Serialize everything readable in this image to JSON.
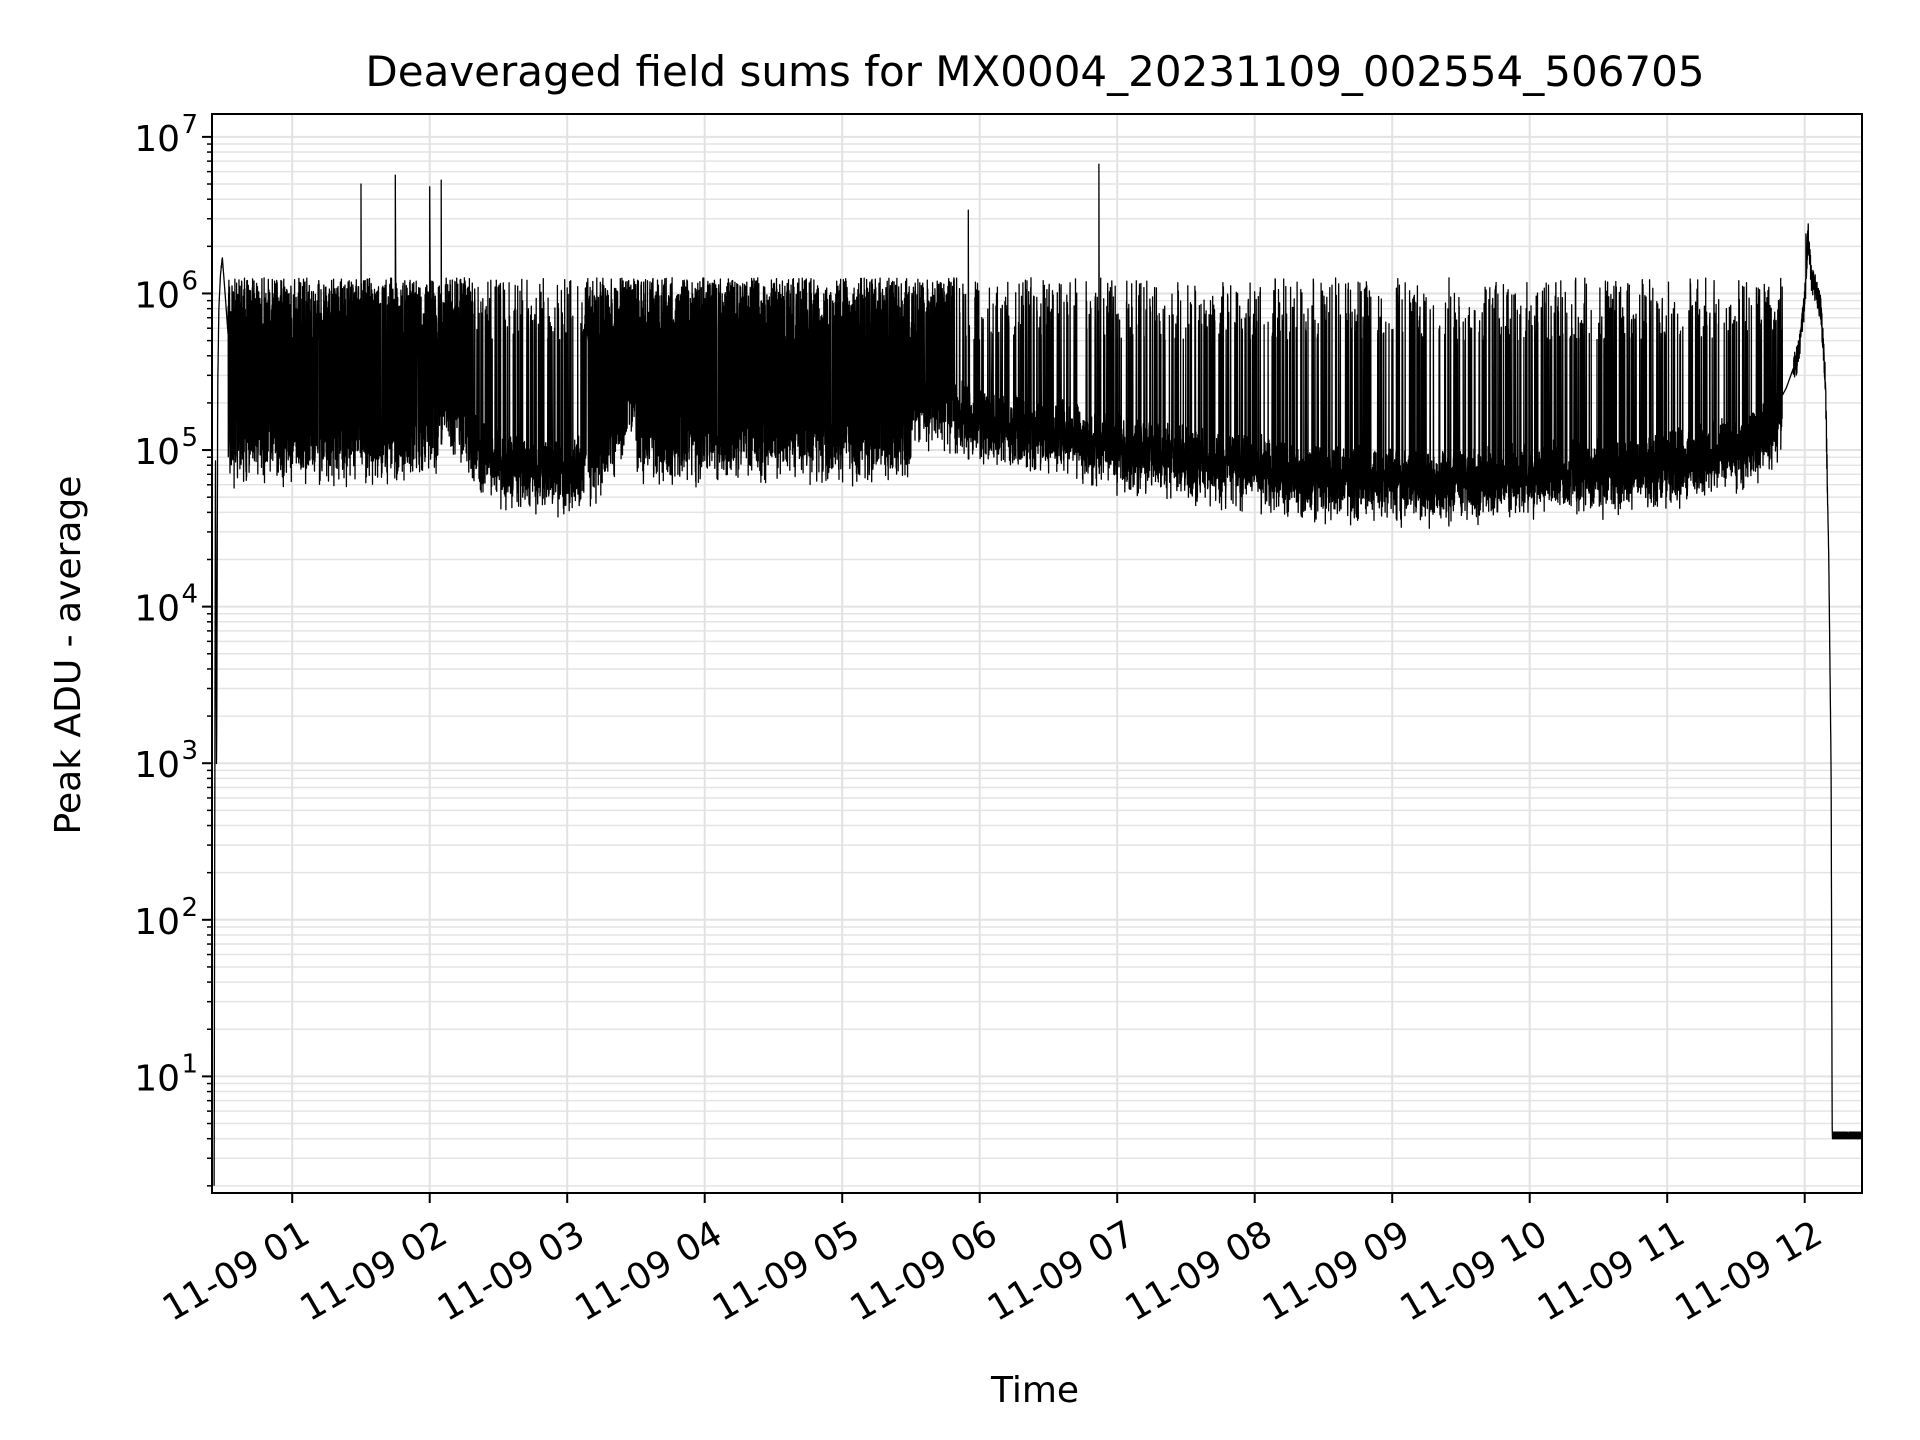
{
  "chart_data": {
    "type": "line",
    "title": "Deaveraged field sums for MX0004_20231109_002554_506705",
    "xlabel": "Time",
    "ylabel": "Peak ADU - average",
    "y_scale": "log",
    "grid": true,
    "ylim": [
      1.8,
      14000000
    ],
    "xlim": [
      "2023-11-09 00:25",
      "2023-11-09 12:25"
    ],
    "x_ticks": [
      {
        "value": "2023-11-09 01:00",
        "label": "11-09 01"
      },
      {
        "value": "2023-11-09 02:00",
        "label": "11-09 02"
      },
      {
        "value": "2023-11-09 03:00",
        "label": "11-09 03"
      },
      {
        "value": "2023-11-09 04:00",
        "label": "11-09 04"
      },
      {
        "value": "2023-11-09 05:00",
        "label": "11-09 05"
      },
      {
        "value": "2023-11-09 06:00",
        "label": "11-09 06"
      },
      {
        "value": "2023-11-09 07:00",
        "label": "11-09 07"
      },
      {
        "value": "2023-11-09 08:00",
        "label": "11-09 08"
      },
      {
        "value": "2023-11-09 09:00",
        "label": "11-09 09"
      },
      {
        "value": "2023-11-09 10:00",
        "label": "11-09 10"
      },
      {
        "value": "2023-11-09 11:00",
        "label": "11-09 11"
      },
      {
        "value": "2023-11-09 12:00",
        "label": "11-09 12"
      }
    ],
    "y_ticks": [
      {
        "value": 10,
        "base": "10",
        "exp": "1"
      },
      {
        "value": 100,
        "base": "10",
        "exp": "2"
      },
      {
        "value": 1000,
        "base": "10",
        "exp": "3"
      },
      {
        "value": 10000,
        "base": "10",
        "exp": "4"
      },
      {
        "value": 100000,
        "base": "10",
        "exp": "5"
      },
      {
        "value": 1000000,
        "base": "10",
        "exp": "6"
      },
      {
        "value": 10000000,
        "base": "10",
        "exp": "7"
      }
    ],
    "line_color": "#000000",
    "series": [
      {
        "x": [
          "2023-11-09 00:25:55",
          "2023-11-09 00:26:30",
          "2023-11-09 00:27:00",
          "2023-11-09 00:27:30",
          "2023-11-09 00:28:00",
          "2023-11-09 00:28:40",
          "2023-11-09 00:29:30",
          "2023-11-09 00:30:30",
          "2023-11-09 00:32:00",
          "2023-11-09 00:33:00",
          "2023-11-09 00:34:00",
          "2023-11-09 00:35:00",
          "2023-11-09 00:36:00",
          "2023-11-09 00:37:00",
          "2023-11-09 00:38:00",
          "2023-11-09 00:40:00",
          "2023-11-09 00:45:00",
          "2023-11-09 00:50:00",
          "2023-11-09 01:00:00",
          "2023-11-09 01:15:00",
          "2023-11-09 01:30:00",
          "2023-11-09 01:45:00",
          "2023-11-09 02:00:00",
          "2023-11-09 02:15:00",
          "2023-11-09 02:30:00",
          "2023-11-09 02:45:00",
          "2023-11-09 03:00:00",
          "2023-11-09 03:15:00",
          "2023-11-09 03:30:00",
          "2023-11-09 03:45:00",
          "2023-11-09 04:00:00",
          "2023-11-09 04:15:00",
          "2023-11-09 04:30:00",
          "2023-11-09 04:45:00",
          "2023-11-09 05:00:00",
          "2023-11-09 05:15:00",
          "2023-11-09 05:30:00",
          "2023-11-09 05:45:00",
          "2023-11-09 06:00:00",
          "2023-11-09 06:15:00",
          "2023-11-09 06:30:00",
          "2023-11-09 06:45:00",
          "2023-11-09 07:00:00",
          "2023-11-09 07:15:00",
          "2023-11-09 07:30:00",
          "2023-11-09 07:45:00",
          "2023-11-09 08:00:00",
          "2023-11-09 08:15:00",
          "2023-11-09 08:30:00",
          "2023-11-09 08:45:00",
          "2023-11-09 09:00:00",
          "2023-11-09 09:15:00",
          "2023-11-09 09:30:00",
          "2023-11-09 09:45:00",
          "2023-11-09 10:00:00",
          "2023-11-09 10:15:00",
          "2023-11-09 10:30:00",
          "2023-11-09 10:45:00",
          "2023-11-09 11:00:00",
          "2023-11-09 11:15:00",
          "2023-11-09 11:30:00",
          "2023-11-09 11:45:00",
          "2023-11-09 11:52:00",
          "2023-11-09 11:57:00",
          "2023-11-09 12:00:00",
          "2023-11-09 12:01:30",
          "2023-11-09 12:03:00",
          "2023-11-09 12:05:00",
          "2023-11-09 12:07:00",
          "2023-11-09 12:09:00",
          "2023-11-09 12:10:30",
          "2023-11-09 12:11:30",
          "2023-11-09 12:12:00",
          "2023-11-09 12:25:00"
        ],
        "y": [
          2,
          100000,
          850,
          250000,
          800000,
          1300000,
          1700000,
          1100000,
          550000,
          700000,
          600000,
          800000,
          900000,
          750000,
          1000000,
          850000,
          750000,
          700000,
          650000,
          550000,
          500000,
          420000,
          300000,
          150000,
          100000,
          95000,
          90000,
          110000,
          250000,
          400000,
          450000,
          420000,
          380000,
          350000,
          300000,
          280000,
          250000,
          220000,
          200000,
          180000,
          160000,
          150000,
          130000,
          120000,
          110000,
          100000,
          95000,
          88000,
          85000,
          82000,
          80000,
          78000,
          80000,
          82000,
          85000,
          88000,
          90000,
          95000,
          100000,
          110000,
          130000,
          160000,
          250000,
          400000,
          900000,
          2400000,
          1200000,
          1100000,
          800000,
          300000,
          20000,
          1000,
          4,
          4
        ]
      }
    ],
    "spikes": [
      {
        "x": "2023-11-09 00:29:00",
        "y": 1500000
      },
      {
        "x": "2023-11-09 01:30:00",
        "y": 5000000
      },
      {
        "x": "2023-11-09 01:45:00",
        "y": 5700000
      },
      {
        "x": "2023-11-09 02:00:00",
        "y": 4800000
      },
      {
        "x": "2023-11-09 02:05:00",
        "y": 5300000
      },
      {
        "x": "2023-11-09 05:55:00",
        "y": 3400000
      },
      {
        "x": "2023-11-09 06:52:00",
        "y": 6700000
      },
      {
        "x": "2023-11-09 12:00:30",
        "y": 2400000
      }
    ]
  }
}
